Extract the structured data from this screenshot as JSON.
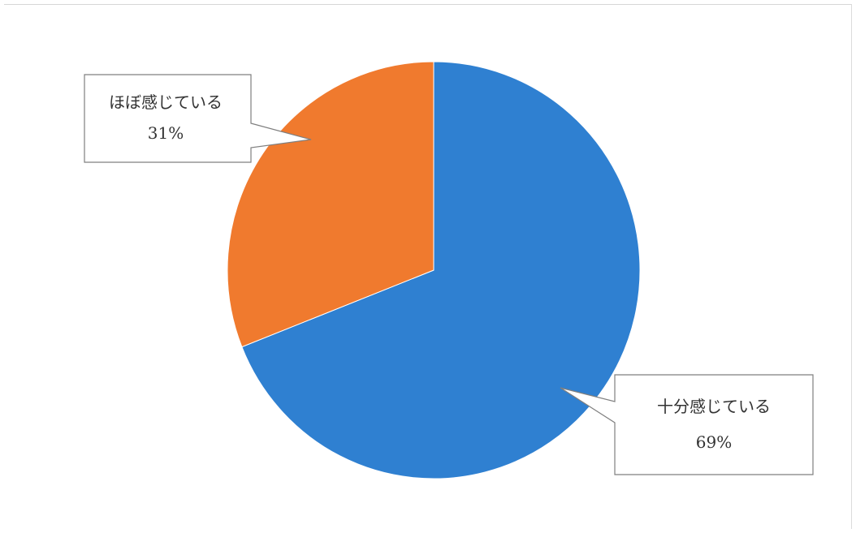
{
  "chart_data": {
    "type": "pie",
    "title": "",
    "slices": [
      {
        "label": "十分感じている",
        "value": 69,
        "value_label": "69%",
        "color": "#2f80d1"
      },
      {
        "label": "ほぼ感じている",
        "value": 31,
        "value_label": "31%",
        "color": "#f07a2e"
      }
    ],
    "start_angle": "12 o'clock",
    "direction": "clockwise",
    "legend": "none",
    "data_labels": "callouts"
  }
}
